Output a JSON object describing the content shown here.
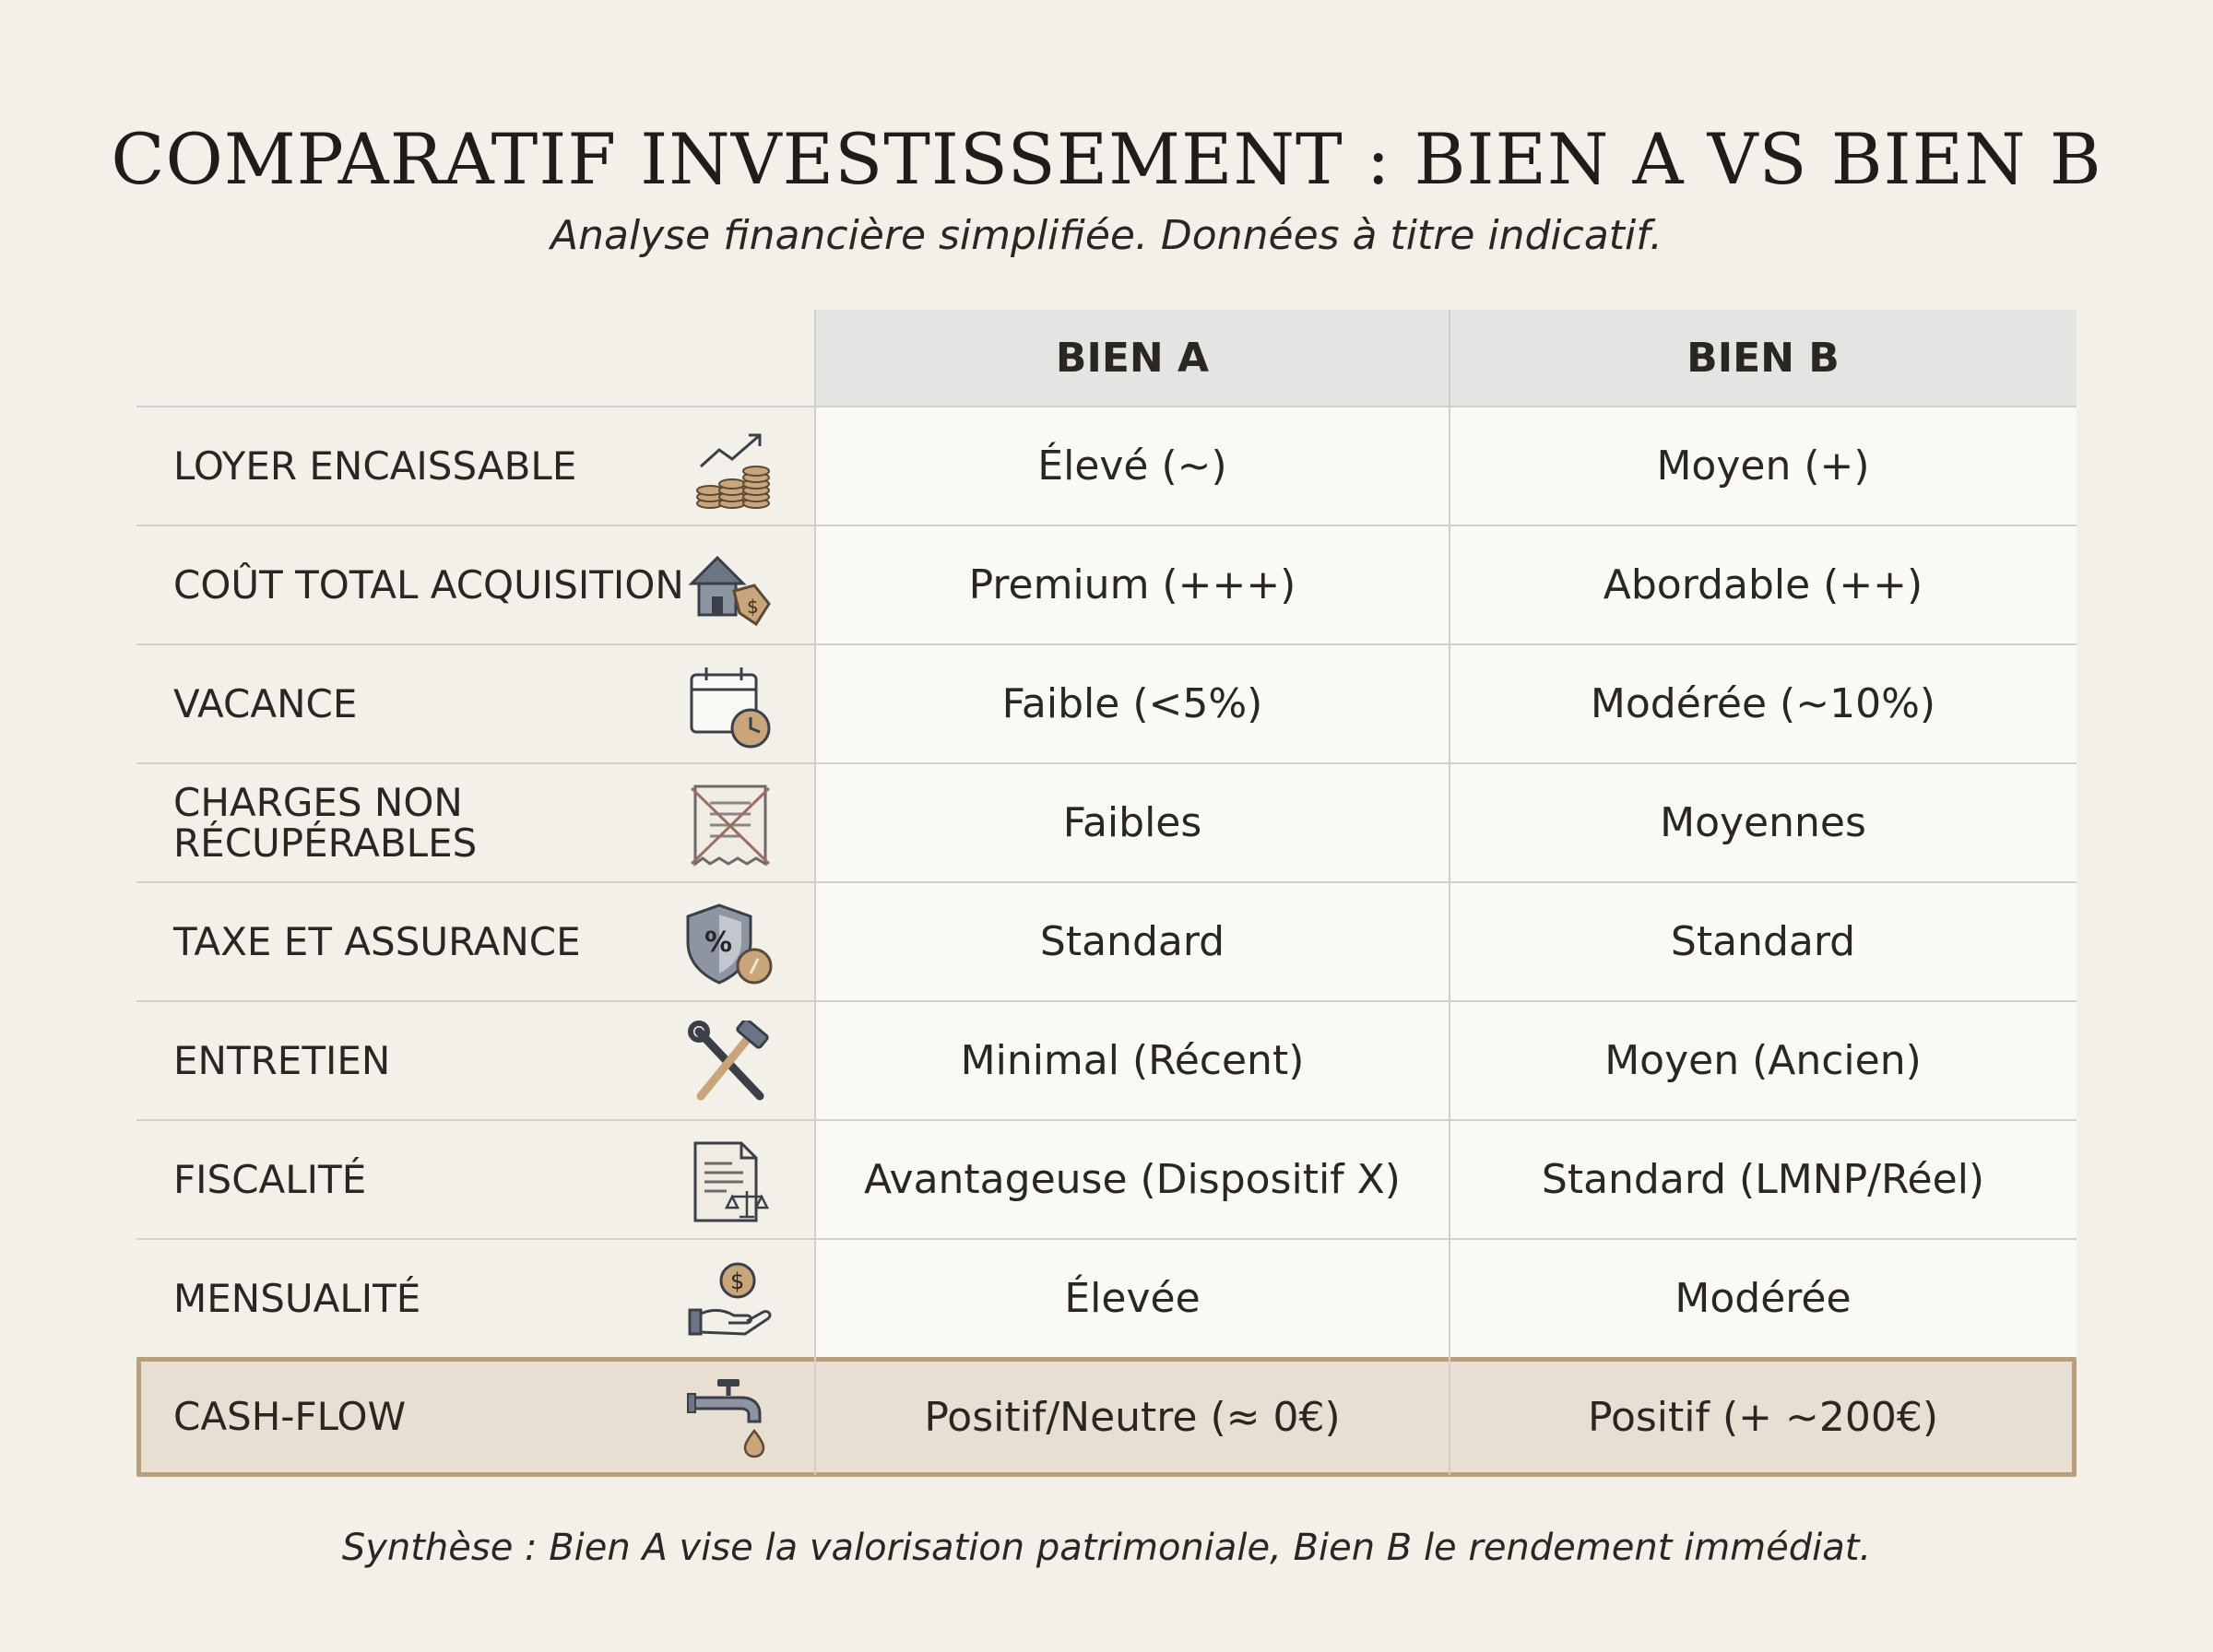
{
  "header": {
    "title": "COMPARATIF INVESTISSEMENT : BIEN A VS BIEN B",
    "subtitle": "Analyse financière simplifiée. Données à titre indicatif."
  },
  "table": {
    "columns": [
      "BIEN A",
      "BIEN B"
    ],
    "rows": [
      {
        "label": "LOYER ENCAISSABLE",
        "icon": "coins-growth-icon",
        "a": "Élevé (~)",
        "b": "Moyen (+)"
      },
      {
        "label": "COÛT TOTAL ACQUISITION",
        "icon": "house-price-tag-icon",
        "a": "Premium (+++)",
        "b": "Abordable (++)"
      },
      {
        "label": "VACANCE",
        "icon": "calendar-clock-icon",
        "a": "Faible (<5%)",
        "b": "Modérée (~10%)"
      },
      {
        "label": "CHARGES NON RÉCUPÉRABLES",
        "icon": "crossed-receipt-icon",
        "a": "Faibles",
        "b": "Moyennes"
      },
      {
        "label": "TAXE ET ASSURANCE",
        "icon": "shield-percent-icon",
        "a": "Standard",
        "b": "Standard"
      },
      {
        "label": "ENTRETIEN",
        "icon": "tools-icon",
        "a": "Minimal (Récent)",
        "b": "Moyen (Ancien)"
      },
      {
        "label": "FISCALITÉ",
        "icon": "document-scales-icon",
        "a": "Avantageuse (Dispositif X)",
        "b": "Standard (LMNP/Réel)"
      },
      {
        "label": "MENSUALITÉ",
        "icon": "hand-coin-icon",
        "a": "Élevée",
        "b": "Modérée"
      },
      {
        "label": "CASH-FLOW",
        "icon": "faucet-drop-icon",
        "a": "Positif/Neutre (≈ 0€)",
        "b": "Positif (+ ~200€)",
        "highlight": true
      }
    ]
  },
  "footer": {
    "summary": "Synthèse : Bien A vise la valorisation patrimoniale, Bien B le rendement immédiat."
  },
  "colors": {
    "background": "#f3f0ea",
    "header_cell": "#e4e4e2",
    "highlight_fill": "#e8ded2",
    "highlight_border": "#b89f7e",
    "icon_gold": "#c9a57a",
    "icon_slate": "#6c7585"
  }
}
